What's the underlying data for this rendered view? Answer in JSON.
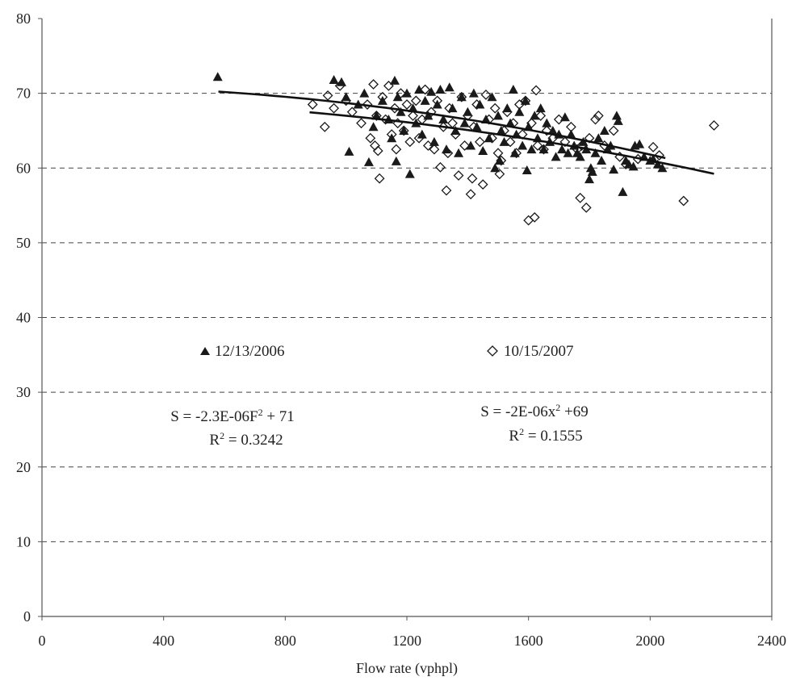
{
  "chart_data": {
    "type": "scatter",
    "title": "",
    "xlabel": "Flow rate (vphpl)",
    "ylabel": "",
    "xlim": [
      0,
      2400
    ],
    "ylim": [
      0,
      80
    ],
    "x_ticks": [
      0,
      400,
      800,
      1200,
      1600,
      2000,
      2400
    ],
    "y_ticks": [
      0,
      10,
      20,
      30,
      40,
      50,
      60,
      70,
      80
    ],
    "grid": "horizontal dashed",
    "legend": [
      {
        "label": "12/13/2006",
        "marker": "triangle-filled"
      },
      {
        "label": "10/15/2007",
        "marker": "diamond-open"
      }
    ],
    "annotations": [
      {
        "line1": "S = -2.3E-06F",
        "sup": "2",
        "line1_tail": " + 71",
        "line2": "R",
        "sup2": "2",
        "line2_tail": " = 0.3242"
      },
      {
        "line1": "S = -2E-06x",
        "sup": "2",
        "line1_tail": " +69",
        "line2": "R",
        "sup2": "2",
        "line2_tail": " = 0.1555"
      }
    ],
    "trendlines": [
      {
        "series": "12/13/2006",
        "a": -2.3e-06,
        "c": 71,
        "x_range": [
          580,
          2050
        ]
      },
      {
        "series": "10/15/2007",
        "a": -2e-06,
        "c": 69,
        "x_range": [
          880,
          2210
        ]
      }
    ],
    "series": [
      {
        "name": "12/13/2006",
        "marker": "triangle-filled",
        "points": [
          [
            578,
            72.2
          ],
          [
            960,
            71.8
          ],
          [
            985,
            71.5
          ],
          [
            1000,
            69.5
          ],
          [
            1010,
            62.2
          ],
          [
            1040,
            68.5
          ],
          [
            1060,
            70.0
          ],
          [
            1075,
            60.8
          ],
          [
            1090,
            65.5
          ],
          [
            1100,
            67.0
          ],
          [
            1120,
            69.0
          ],
          [
            1140,
            66.5
          ],
          [
            1150,
            64.0
          ],
          [
            1160,
            71.7
          ],
          [
            1165,
            60.9
          ],
          [
            1170,
            69.5
          ],
          [
            1180,
            67.5
          ],
          [
            1190,
            65.0
          ],
          [
            1200,
            70.0
          ],
          [
            1210,
            59.2
          ],
          [
            1220,
            68.0
          ],
          [
            1230,
            66.0
          ],
          [
            1240,
            70.5
          ],
          [
            1250,
            64.5
          ],
          [
            1260,
            69.0
          ],
          [
            1270,
            67.0
          ],
          [
            1280,
            70.2
          ],
          [
            1290,
            63.5
          ],
          [
            1300,
            68.5
          ],
          [
            1310,
            70.5
          ],
          [
            1320,
            66.5
          ],
          [
            1330,
            62.5
          ],
          [
            1340,
            70.8
          ],
          [
            1350,
            68.0
          ],
          [
            1360,
            65.0
          ],
          [
            1370,
            62.0
          ],
          [
            1380,
            69.5
          ],
          [
            1390,
            66.0
          ],
          [
            1400,
            67.5
          ],
          [
            1410,
            63.0
          ],
          [
            1420,
            70.0
          ],
          [
            1430,
            65.5
          ],
          [
            1440,
            68.5
          ],
          [
            1450,
            62.3
          ],
          [
            1460,
            66.5
          ],
          [
            1470,
            64.0
          ],
          [
            1480,
            69.5
          ],
          [
            1490,
            60.0
          ],
          [
            1500,
            67.0
          ],
          [
            1505,
            61.0
          ],
          [
            1510,
            65.0
          ],
          [
            1520,
            63.5
          ],
          [
            1530,
            68.0
          ],
          [
            1540,
            66.0
          ],
          [
            1550,
            70.5
          ],
          [
            1555,
            62.0
          ],
          [
            1560,
            64.5
          ],
          [
            1570,
            67.5
          ],
          [
            1580,
            63.0
          ],
          [
            1590,
            69.0
          ],
          [
            1595,
            59.7
          ],
          [
            1600,
            65.5
          ],
          [
            1610,
            62.5
          ],
          [
            1620,
            67.0
          ],
          [
            1630,
            64.0
          ],
          [
            1640,
            68.0
          ],
          [
            1650,
            62.5
          ],
          [
            1660,
            66.0
          ],
          [
            1670,
            63.5
          ],
          [
            1680,
            65.0
          ],
          [
            1690,
            61.5
          ],
          [
            1700,
            64.5
          ],
          [
            1710,
            62.5
          ],
          [
            1720,
            66.8
          ],
          [
            1730,
            62.0
          ],
          [
            1740,
            64.5
          ],
          [
            1750,
            63.0
          ],
          [
            1760,
            62.0
          ],
          [
            1770,
            61.5
          ],
          [
            1780,
            63.5
          ],
          [
            1790,
            62.5
          ],
          [
            1800,
            58.5
          ],
          [
            1805,
            60.0
          ],
          [
            1810,
            59.5
          ],
          [
            1820,
            62.0
          ],
          [
            1830,
            64.0
          ],
          [
            1840,
            61.0
          ],
          [
            1850,
            65.0
          ],
          [
            1860,
            62.5
          ],
          [
            1870,
            63.0
          ],
          [
            1880,
            59.8
          ],
          [
            1890,
            67.0
          ],
          [
            1895,
            66.3
          ],
          [
            1910,
            56.8
          ],
          [
            1920,
            61.0
          ],
          [
            1930,
            60.5
          ],
          [
            1945,
            60.2
          ],
          [
            1950,
            63.0
          ],
          [
            1965,
            63.2
          ],
          [
            1980,
            61.5
          ],
          [
            2000,
            61.0
          ],
          [
            2010,
            61.2
          ],
          [
            2025,
            60.5
          ],
          [
            2040,
            60.0
          ]
        ]
      },
      {
        "name": "10/15/2007",
        "marker": "diamond-open",
        "points": [
          [
            890,
            68.5
          ],
          [
            930,
            65.5
          ],
          [
            940,
            69.7
          ],
          [
            960,
            68.0
          ],
          [
            980,
            71.0
          ],
          [
            1000,
            69.0
          ],
          [
            1020,
            67.5
          ],
          [
            1050,
            66.0
          ],
          [
            1070,
            68.5
          ],
          [
            1080,
            64.0
          ],
          [
            1090,
            71.2
          ],
          [
            1095,
            63.0
          ],
          [
            1100,
            67.0
          ],
          [
            1105,
            62.3
          ],
          [
            1110,
            58.6
          ],
          [
            1120,
            69.5
          ],
          [
            1130,
            66.5
          ],
          [
            1140,
            71.0
          ],
          [
            1150,
            64.5
          ],
          [
            1160,
            68.0
          ],
          [
            1165,
            62.5
          ],
          [
            1170,
            66.0
          ],
          [
            1180,
            70.0
          ],
          [
            1190,
            65.0
          ],
          [
            1200,
            68.5
          ],
          [
            1210,
            63.5
          ],
          [
            1220,
            67.0
          ],
          [
            1230,
            69.0
          ],
          [
            1240,
            64.0
          ],
          [
            1250,
            66.5
          ],
          [
            1260,
            70.5
          ],
          [
            1270,
            63.0
          ],
          [
            1280,
            67.5
          ],
          [
            1290,
            62.5
          ],
          [
            1300,
            69.0
          ],
          [
            1310,
            60.1
          ],
          [
            1320,
            65.5
          ],
          [
            1330,
            57.0
          ],
          [
            1335,
            62.0
          ],
          [
            1340,
            68.0
          ],
          [
            1350,
            66.0
          ],
          [
            1360,
            64.5
          ],
          [
            1370,
            59.0
          ],
          [
            1380,
            69.5
          ],
          [
            1390,
            63.0
          ],
          [
            1400,
            67.0
          ],
          [
            1410,
            56.5
          ],
          [
            1415,
            58.6
          ],
          [
            1420,
            65.5
          ],
          [
            1430,
            68.5
          ],
          [
            1440,
            63.5
          ],
          [
            1450,
            57.8
          ],
          [
            1460,
            69.8
          ],
          [
            1470,
            66.5
          ],
          [
            1480,
            64.0
          ],
          [
            1490,
            68.0
          ],
          [
            1500,
            62.0
          ],
          [
            1505,
            59.2
          ],
          [
            1510,
            61.0
          ],
          [
            1520,
            65.0
          ],
          [
            1530,
            67.5
          ],
          [
            1540,
            63.5
          ],
          [
            1550,
            66.0
          ],
          [
            1560,
            62.0
          ],
          [
            1570,
            68.5
          ],
          [
            1580,
            64.5
          ],
          [
            1590,
            69.0
          ],
          [
            1600,
            53.0
          ],
          [
            1610,
            66.0
          ],
          [
            1620,
            53.4
          ],
          [
            1625,
            70.4
          ],
          [
            1630,
            63.0
          ],
          [
            1640,
            67.0
          ],
          [
            1650,
            62.5
          ],
          [
            1660,
            65.0
          ],
          [
            1680,
            64.0
          ],
          [
            1700,
            66.5
          ],
          [
            1720,
            63.5
          ],
          [
            1740,
            65.5
          ],
          [
            1760,
            62.5
          ],
          [
            1770,
            56.0
          ],
          [
            1775,
            63.0
          ],
          [
            1790,
            54.7
          ],
          [
            1800,
            64.0
          ],
          [
            1820,
            66.5
          ],
          [
            1830,
            67.0
          ],
          [
            1850,
            63.0
          ],
          [
            1880,
            65.0
          ],
          [
            1900,
            61.5
          ],
          [
            1920,
            60.5
          ],
          [
            1960,
            61.2
          ],
          [
            2010,
            62.8
          ],
          [
            2030,
            61.7
          ],
          [
            2110,
            55.6
          ],
          [
            2210,
            65.7
          ]
        ]
      }
    ]
  }
}
